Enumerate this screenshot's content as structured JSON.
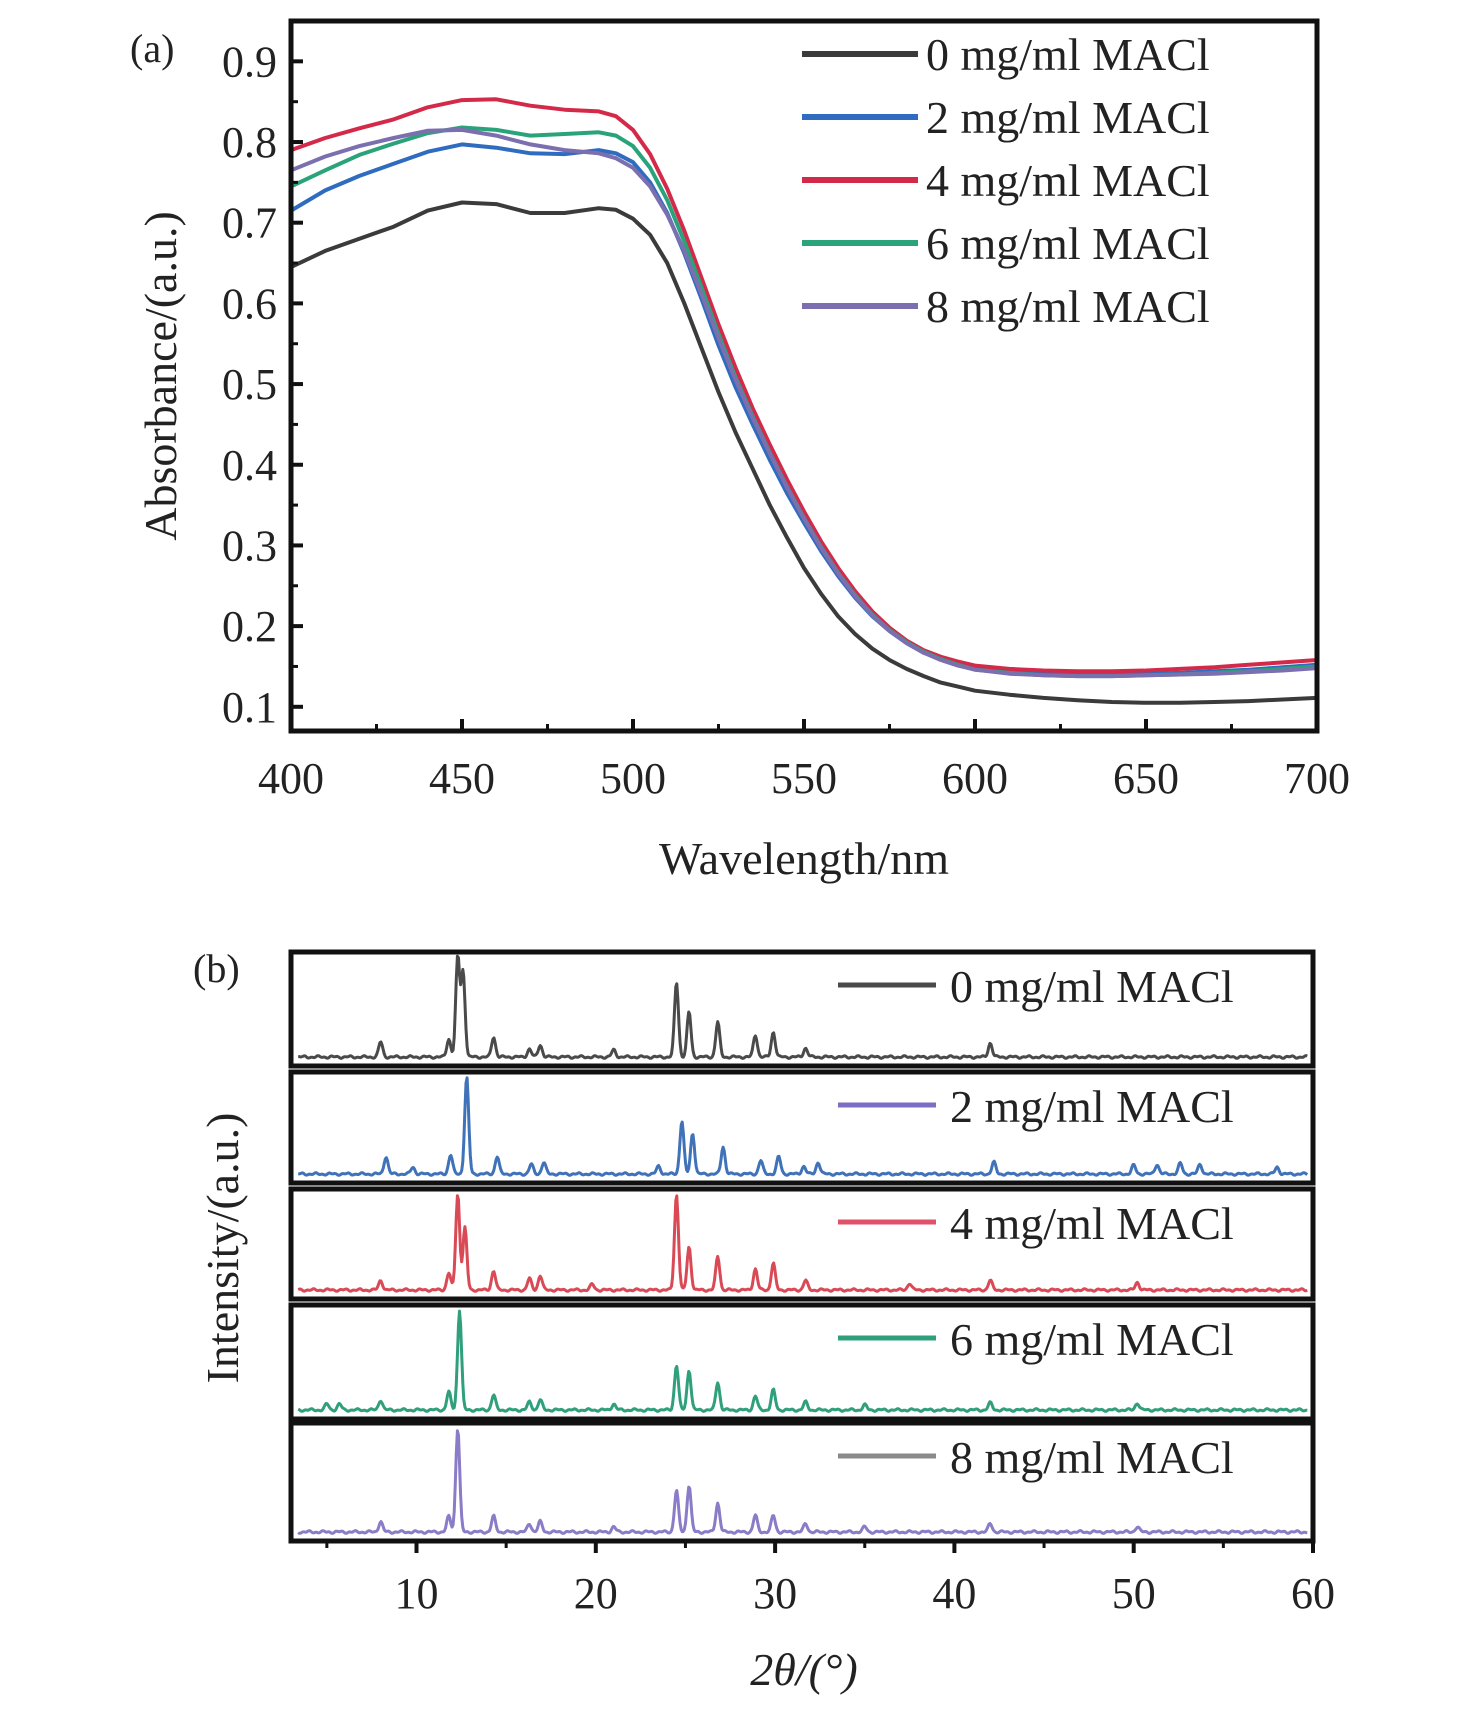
{
  "chart_data": [
    {
      "panel_label": "(a)",
      "type": "line",
      "xlabel": "Wavelength/nm",
      "ylabel": "Absorbance/(a.u.)",
      "xlim": [
        400,
        700
      ],
      "ylim": [
        0.07,
        0.95
      ],
      "xticks": [
        "400",
        "450",
        "500",
        "550",
        "600",
        "650",
        "700"
      ],
      "yticks": [
        "0.1",
        "0.2",
        "0.3",
        "0.4",
        "0.5",
        "0.6",
        "0.7",
        "0.8",
        "0.9"
      ],
      "legend": "top-right",
      "grid": false,
      "x": [
        400,
        410,
        420,
        430,
        440,
        450,
        460,
        470,
        480,
        490,
        495,
        500,
        505,
        510,
        515,
        520,
        525,
        530,
        535,
        540,
        545,
        550,
        555,
        560,
        565,
        570,
        575,
        580,
        585,
        590,
        595,
        600,
        610,
        620,
        630,
        640,
        650,
        660,
        670,
        680,
        690,
        700
      ],
      "series": [
        {
          "name": "0 mg/ml MACl",
          "color": "#3b3b3b",
          "values": [
            0.645,
            0.665,
            0.68,
            0.695,
            0.715,
            0.725,
            0.723,
            0.712,
            0.712,
            0.718,
            0.716,
            0.705,
            0.685,
            0.65,
            0.6,
            0.545,
            0.49,
            0.44,
            0.395,
            0.35,
            0.31,
            0.272,
            0.24,
            0.212,
            0.19,
            0.172,
            0.158,
            0.147,
            0.138,
            0.13,
            0.125,
            0.12,
            0.115,
            0.111,
            0.108,
            0.106,
            0.105,
            0.105,
            0.106,
            0.107,
            0.109,
            0.111
          ]
        },
        {
          "name": "2 mg/ml MACl",
          "color": "#2f6cc0",
          "values": [
            0.715,
            0.74,
            0.758,
            0.773,
            0.788,
            0.797,
            0.793,
            0.786,
            0.785,
            0.79,
            0.786,
            0.775,
            0.75,
            0.712,
            0.662,
            0.606,
            0.548,
            0.496,
            0.45,
            0.406,
            0.365,
            0.328,
            0.293,
            0.262,
            0.235,
            0.212,
            0.194,
            0.179,
            0.167,
            0.159,
            0.152,
            0.147,
            0.143,
            0.141,
            0.14,
            0.14,
            0.141,
            0.142,
            0.144,
            0.146,
            0.149,
            0.152
          ]
        },
        {
          "name": "4 mg/ml MACl",
          "color": "#d42a4a",
          "values": [
            0.79,
            0.805,
            0.817,
            0.828,
            0.843,
            0.852,
            0.853,
            0.845,
            0.84,
            0.838,
            0.832,
            0.815,
            0.785,
            0.742,
            0.69,
            0.632,
            0.574,
            0.52,
            0.47,
            0.425,
            0.382,
            0.342,
            0.305,
            0.272,
            0.243,
            0.218,
            0.198,
            0.182,
            0.17,
            0.162,
            0.156,
            0.151,
            0.147,
            0.145,
            0.144,
            0.144,
            0.145,
            0.147,
            0.149,
            0.152,
            0.155,
            0.158
          ]
        },
        {
          "name": "6 mg/ml MACl",
          "color": "#2aa37a",
          "values": [
            0.745,
            0.765,
            0.784,
            0.798,
            0.811,
            0.818,
            0.815,
            0.808,
            0.81,
            0.812,
            0.808,
            0.795,
            0.768,
            0.728,
            0.677,
            0.62,
            0.562,
            0.508,
            0.46,
            0.415,
            0.373,
            0.334,
            0.298,
            0.266,
            0.238,
            0.214,
            0.195,
            0.18,
            0.168,
            0.159,
            0.152,
            0.146,
            0.142,
            0.139,
            0.138,
            0.138,
            0.139,
            0.14,
            0.142,
            0.144,
            0.147,
            0.15
          ]
        },
        {
          "name": "8 mg/ml MACl",
          "color": "#7b6fb0",
          "values": [
            0.765,
            0.782,
            0.795,
            0.805,
            0.814,
            0.815,
            0.808,
            0.797,
            0.79,
            0.786,
            0.78,
            0.768,
            0.745,
            0.71,
            0.665,
            0.612,
            0.557,
            0.505,
            0.458,
            0.414,
            0.372,
            0.333,
            0.297,
            0.265,
            0.237,
            0.213,
            0.194,
            0.179,
            0.167,
            0.158,
            0.151,
            0.146,
            0.141,
            0.139,
            0.138,
            0.138,
            0.139,
            0.14,
            0.141,
            0.143,
            0.145,
            0.148
          ]
        }
      ]
    },
    {
      "panel_label": "(b)",
      "type": "line",
      "xlabel": "2θ/(°)",
      "ylabel": "Intensity/(a.u.)",
      "xlim": [
        3,
        60
      ],
      "xticks": [
        "10",
        "20",
        "30",
        "40",
        "50",
        "60"
      ],
      "legend": "top-right",
      "grid": false,
      "stacked_panels": true,
      "series": [
        {
          "name": "0 mg/ml MACl",
          "color": "#4a4a4a",
          "legend_color": "#4a4a4a",
          "peaks": [
            [
              8.0,
              0.15
            ],
            [
              11.8,
              0.18
            ],
            [
              12.3,
              1.0
            ],
            [
              12.6,
              0.85
            ],
            [
              14.3,
              0.2
            ],
            [
              16.3,
              0.08
            ],
            [
              16.9,
              0.12
            ],
            [
              21.0,
              0.07
            ],
            [
              24.5,
              0.75
            ],
            [
              25.2,
              0.45
            ],
            [
              26.8,
              0.35
            ],
            [
              28.9,
              0.22
            ],
            [
              29.9,
              0.25
            ],
            [
              31.7,
              0.09
            ],
            [
              42.0,
              0.14
            ]
          ]
        },
        {
          "name": "2 mg/ml MACl",
          "color": "#3f72b8",
          "legend_color": "#7b6fc4",
          "peaks": [
            [
              8.3,
              0.18
            ],
            [
              9.8,
              0.07
            ],
            [
              11.9,
              0.2
            ],
            [
              12.8,
              1.0
            ],
            [
              14.5,
              0.18
            ],
            [
              16.4,
              0.1
            ],
            [
              17.1,
              0.12
            ],
            [
              23.5,
              0.08
            ],
            [
              24.8,
              0.55
            ],
            [
              25.4,
              0.42
            ],
            [
              27.1,
              0.28
            ],
            [
              29.2,
              0.14
            ],
            [
              30.2,
              0.18
            ],
            [
              31.6,
              0.08
            ],
            [
              32.4,
              0.12
            ],
            [
              42.2,
              0.12
            ],
            [
              50.0,
              0.09
            ],
            [
              51.3,
              0.1
            ],
            [
              52.6,
              0.11
            ],
            [
              53.7,
              0.1
            ],
            [
              58.0,
              0.07
            ]
          ]
        },
        {
          "name": "4 mg/ml MACl",
          "color": "#d94a56",
          "legend_color": "#e0526a",
          "peaks": [
            [
              8.0,
              0.1
            ],
            [
              11.8,
              0.18
            ],
            [
              12.3,
              1.0
            ],
            [
              12.7,
              0.65
            ],
            [
              14.3,
              0.2
            ],
            [
              16.3,
              0.12
            ],
            [
              16.9,
              0.15
            ],
            [
              19.8,
              0.06
            ],
            [
              24.5,
              1.0
            ],
            [
              25.2,
              0.45
            ],
            [
              26.8,
              0.35
            ],
            [
              28.9,
              0.22
            ],
            [
              29.9,
              0.28
            ],
            [
              31.7,
              0.1
            ],
            [
              37.5,
              0.07
            ],
            [
              42.0,
              0.1
            ],
            [
              50.2,
              0.08
            ]
          ]
        },
        {
          "name": "6 mg/ml MACl",
          "color": "#2f9f7c",
          "legend_color": "#2f9f7c",
          "peaks": [
            [
              5.0,
              0.06
            ],
            [
              5.7,
              0.06
            ],
            [
              8.0,
              0.1
            ],
            [
              11.8,
              0.18
            ],
            [
              12.4,
              1.0
            ],
            [
              14.3,
              0.15
            ],
            [
              16.3,
              0.08
            ],
            [
              16.9,
              0.1
            ],
            [
              21.0,
              0.06
            ],
            [
              24.5,
              0.45
            ],
            [
              25.2,
              0.4
            ],
            [
              26.8,
              0.28
            ],
            [
              28.9,
              0.14
            ],
            [
              29.9,
              0.2
            ],
            [
              31.7,
              0.08
            ],
            [
              35.0,
              0.05
            ],
            [
              42.0,
              0.07
            ],
            [
              50.2,
              0.07
            ]
          ]
        },
        {
          "name": "8 mg/ml MACl",
          "color": "#8a7cc6",
          "legend_color": "#8a8a8a",
          "peaks": [
            [
              8.0,
              0.1
            ],
            [
              11.8,
              0.15
            ],
            [
              12.3,
              1.0
            ],
            [
              14.3,
              0.15
            ],
            [
              16.3,
              0.08
            ],
            [
              16.9,
              0.1
            ],
            [
              21.0,
              0.05
            ],
            [
              24.5,
              0.4
            ],
            [
              25.2,
              0.45
            ],
            [
              26.8,
              0.28
            ],
            [
              28.9,
              0.16
            ],
            [
              29.9,
              0.16
            ],
            [
              31.7,
              0.08
            ],
            [
              35.0,
              0.05
            ],
            [
              42.0,
              0.08
            ],
            [
              50.2,
              0.05
            ]
          ]
        }
      ]
    }
  ]
}
